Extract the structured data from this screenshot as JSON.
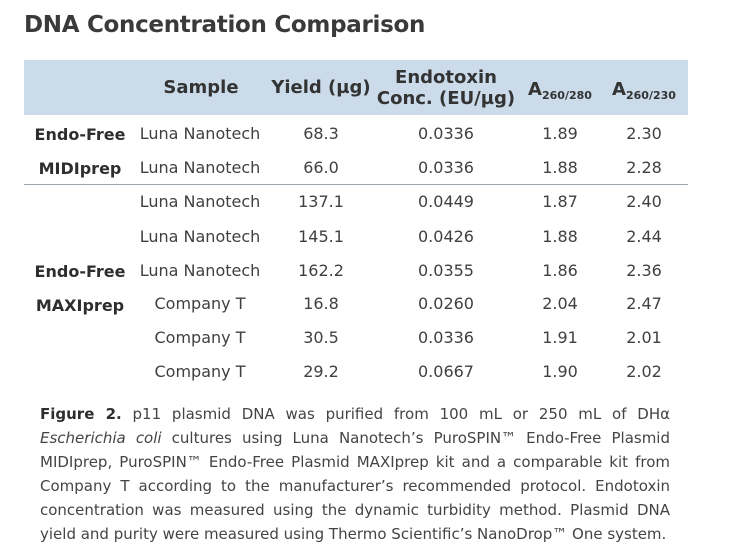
{
  "title": "DNA Concentration Comparison",
  "table": {
    "headers": {
      "sample": "Sample",
      "yield": "Yield (µg)",
      "endotoxin_line1": "Endotoxin",
      "endotoxin_line2": "Conc. (EU/µg)",
      "a_base": "A",
      "a280_sub": "260/280",
      "a230_sub": "260/230"
    },
    "groups": [
      {
        "label_line1": "Endo-Free",
        "label_line2": "MIDIprep"
      },
      {
        "label_line1": "Endo-Free",
        "label_line2": "MAXIprep"
      }
    ],
    "rows": [
      {
        "sample": "Luna Nanotech",
        "yield": "68.3",
        "endotoxin": "0.0336",
        "a280": "1.89",
        "a230": "2.30"
      },
      {
        "sample": "Luna Nanotech",
        "yield": "66.0",
        "endotoxin": "0.0336",
        "a280": "1.88",
        "a230": "2.28"
      },
      {
        "sample": "Luna Nanotech",
        "yield": "137.1",
        "endotoxin": "0.0449",
        "a280": "1.87",
        "a230": "2.40"
      },
      {
        "sample": "Luna Nanotech",
        "yield": "145.1",
        "endotoxin": "0.0426",
        "a280": "1.88",
        "a230": "2.44"
      },
      {
        "sample": "Luna Nanotech",
        "yield": "162.2",
        "endotoxin": "0.0355",
        "a280": "1.86",
        "a230": "2.36"
      },
      {
        "sample": "Company T",
        "yield": "16.8",
        "endotoxin": "0.0260",
        "a280": "2.04",
        "a230": "2.47"
      },
      {
        "sample": "Company T",
        "yield": "30.5",
        "endotoxin": "0.0336",
        "a280": "1.91",
        "a230": "2.01"
      },
      {
        "sample": "Company T",
        "yield": "29.2",
        "endotoxin": "0.0667",
        "a280": "1.90",
        "a230": "2.02"
      }
    ]
  },
  "caption": {
    "label": "Figure 2.",
    "text_part1": " p11 plasmid DNA was purified from 100 mL or 250 mL of DHα ",
    "italic": "Escherichia coli",
    "text_part2": " cultures using Luna Nanotech’s PuroSPIN™ Endo-Free Plasmid MIDIprep, PuroSPIN™ Endo-Free Plasmid MAXIprep kit and a comparable kit from Company T according to the manufacturer’s recommended protocol. Endotoxin concentration was measured using the dynamic turbidity method. Plasmid DNA yield and purity were measured using Thermo Scientific’s NanoDrop™ One system."
  },
  "colors": {
    "header_band": "#cbdbe9",
    "divider": "#9aa3ab",
    "text": "#333333"
  }
}
